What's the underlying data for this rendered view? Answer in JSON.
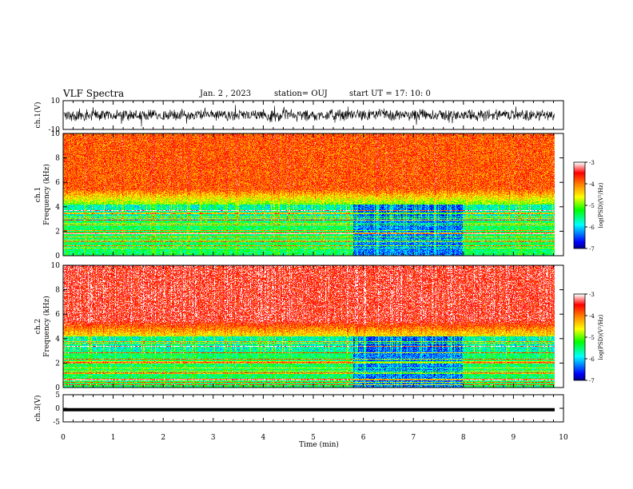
{
  "header": {
    "title": "VLF Spectra",
    "date": "Jan. 2 , 2023",
    "station": "station= OUJ",
    "start": "start  UT =   17: 10: 0"
  },
  "chart_data": [
    {
      "type": "line",
      "panel": "ch1-waveform",
      "ylabel": "ch.1(V)",
      "ylim": [
        -10,
        10
      ],
      "yticks": [
        10,
        -10
      ],
      "xlim": [
        0,
        10
      ],
      "description_values": "broadband noise roughly between -5 and 5 V across 0-9.8 min"
    },
    {
      "type": "heatmap",
      "panel": "ch1-spectrogram",
      "ylabel": "ch.1\nFrequency  (kHz)",
      "ylim": [
        0,
        10
      ],
      "yticks": [
        0,
        2,
        4,
        6,
        8,
        10
      ],
      "xlim": [
        0,
        10
      ],
      "colorbar": {
        "label": "log(PSD)(V²/Hz)",
        "range": [
          -7,
          -3
        ],
        "ticks": [
          -3,
          -4,
          -5,
          -6,
          -7
        ]
      }
    },
    {
      "type": "heatmap",
      "panel": "ch2-spectrogram",
      "ylabel": "ch.2\nFrequency  (kHz)",
      "ylim": [
        0,
        10
      ],
      "yticks": [
        0,
        2,
        4,
        6,
        8,
        10
      ],
      "xlim": [
        0,
        10
      ],
      "colorbar": {
        "label": "log(PSD)(V²/Hz)",
        "range": [
          -7,
          -3
        ],
        "ticks": [
          -3,
          -4,
          -5,
          -6,
          -7
        ]
      }
    },
    {
      "type": "line",
      "panel": "ch3-waveform",
      "ylabel": "ch.3(V)",
      "ylim": [
        -5,
        5
      ],
      "yticks": [
        5,
        0,
        -5
      ],
      "xlim": [
        0,
        10
      ],
      "constant_value": -0.5
    }
  ],
  "xaxis": {
    "label": "Time  (min)",
    "ticks": [
      0,
      1,
      2,
      3,
      4,
      5,
      6,
      7,
      8,
      9,
      10
    ]
  },
  "colors": {
    "trace": "#000000",
    "cmap": [
      "#00007f",
      "#0000ff",
      "#00ffff",
      "#00ff00",
      "#ffff00",
      "#ff7f00",
      "#ff0000",
      "#ffffff"
    ]
  }
}
